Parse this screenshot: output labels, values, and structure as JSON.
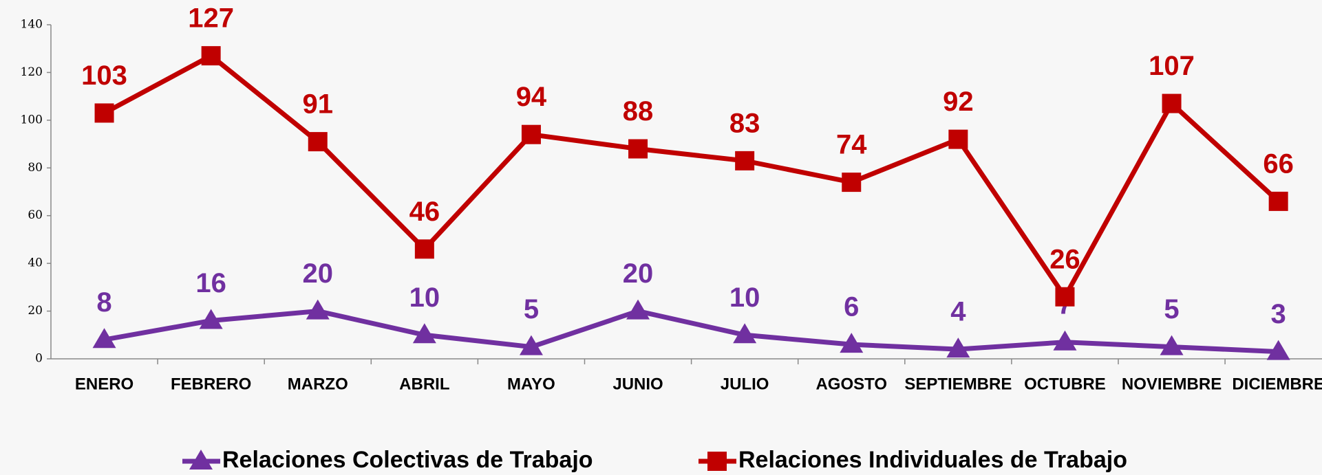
{
  "chart_data": {
    "type": "line",
    "categories": [
      "ENERO",
      "FEBRERO",
      "MARZO",
      "ABRIL",
      "MAYO",
      "JUNIO",
      "JULIO",
      "AGOSTO",
      "SEPTIEMBRE",
      "OCTUBRE",
      "NOVIEMBRE",
      "DICIEMBRE"
    ],
    "series": [
      {
        "name": "Relaciones Colectivas de Trabajo",
        "color": "#7030a0",
        "marker": "triangle",
        "values": [
          8,
          16,
          20,
          10,
          5,
          20,
          10,
          6,
          4,
          7,
          5,
          3
        ]
      },
      {
        "name": "Relaciones Individuales de Trabajo",
        "color": "#c00000",
        "marker": "square",
        "values": [
          103,
          127,
          91,
          46,
          94,
          88,
          83,
          74,
          92,
          26,
          107,
          66
        ]
      }
    ],
    "ylim": [
      0,
      140
    ],
    "yticks": [
      0,
      20,
      40,
      60,
      80,
      100,
      120,
      140
    ],
    "legend": "bottom"
  }
}
